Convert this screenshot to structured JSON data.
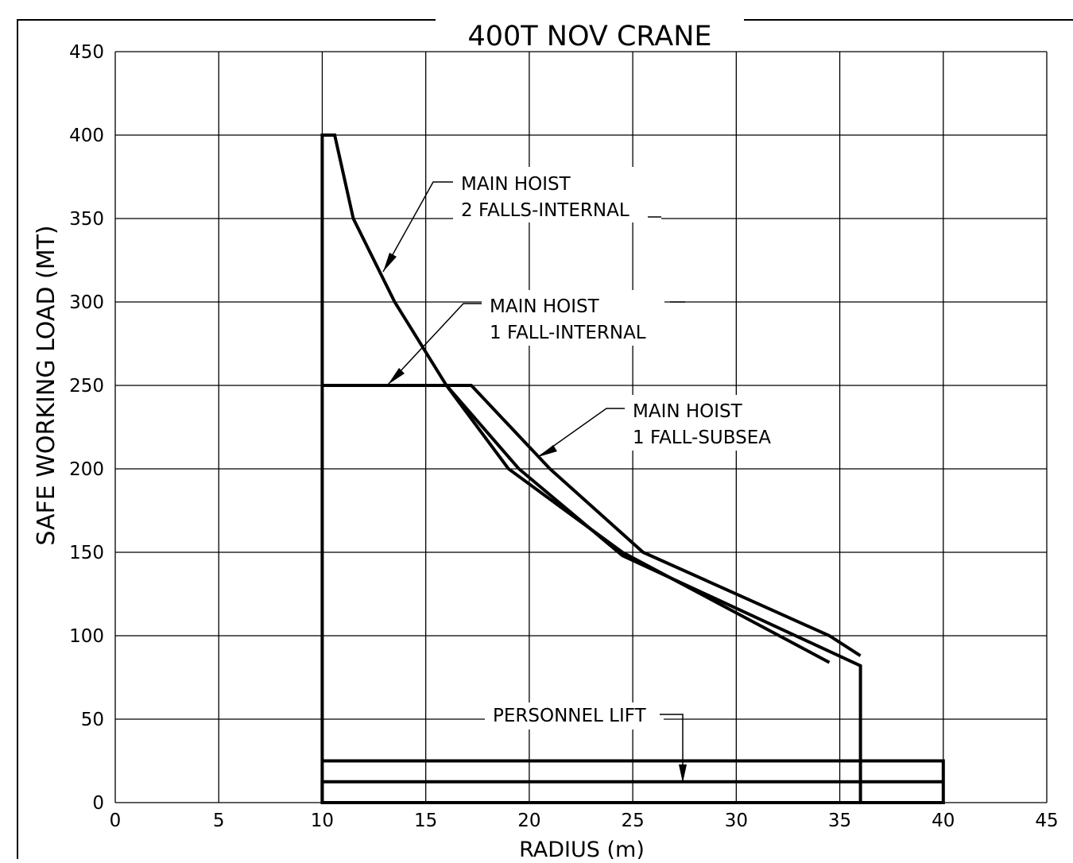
{
  "chart_data": {
    "type": "line",
    "title": "400T NOV CRANE",
    "xlabel": "RADIUS (m)",
    "ylabel": "SAFE WORKING LOAD (MT)",
    "xlim": [
      0,
      45
    ],
    "ylim": [
      0,
      450
    ],
    "x_ticks": [
      0,
      5,
      10,
      15,
      20,
      25,
      30,
      35,
      40,
      45
    ],
    "y_ticks": [
      0,
      50,
      100,
      150,
      200,
      250,
      300,
      350,
      400,
      450
    ],
    "grid": true,
    "series": [
      {
        "name": "MAIN HOIST 2 FALLS-INTERNAL",
        "x": [
          10,
          10,
          10.6,
          11.5,
          13.5,
          16,
          19,
          24.5,
          34.5
        ],
        "y": [
          0,
          400,
          400,
          350,
          300,
          250,
          200,
          150,
          84
        ]
      },
      {
        "name": "MAIN HOIST 1 FALL-INTERNAL",
        "x": [
          10,
          16,
          19.5,
          24.5,
          36,
          36
        ],
        "y": [
          250,
          250,
          200,
          148,
          82,
          0
        ]
      },
      {
        "name": "MAIN HOIST 1 FALL-SUBSEA",
        "x": [
          16,
          17.2,
          21,
          25.5,
          34.5,
          36
        ],
        "y": [
          250,
          250,
          200,
          150,
          100,
          88
        ]
      },
      {
        "name": "PERSONNEL LIFT",
        "x": [
          10,
          40,
          40,
          10,
          10,
          40
        ],
        "y": [
          25,
          25,
          0,
          0,
          12.5,
          12.5
        ]
      }
    ],
    "annotations": [
      {
        "lines": [
          "MAIN HOIST",
          "2 FALLS-INTERNAL"
        ]
      },
      {
        "lines": [
          "MAIN HOIST",
          "1 FALL-INTERNAL"
        ]
      },
      {
        "lines": [
          "MAIN HOIST",
          "1 FALL-SUBSEA"
        ]
      },
      {
        "lines": [
          "PERSONNEL LIFT"
        ]
      }
    ]
  }
}
